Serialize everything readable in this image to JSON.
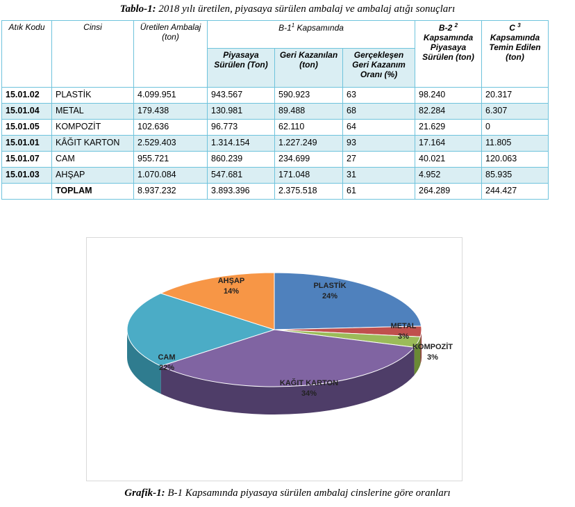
{
  "caption_top": {
    "bold": "Tablo-1:",
    "text": " 2018 yılı üretilen, piyasaya sürülen ambalaj ve ambalaj atığı sonuçları"
  },
  "caption_bottom": {
    "bold": "Grafik-1:",
    "text": " B-1 Kapsamında piyasaya sürülen ambalaj cinslerine göre oranları"
  },
  "table": {
    "headers": {
      "atik_kodu": "Atık Kodu",
      "cinsi": "Cinsi",
      "uretilen": "Üretilen Ambalaj (ton)",
      "b1_pre": "B-1",
      "b1_sup": "1",
      "b1_post": " Kapsamında",
      "piyasaya": "Piyasaya Sürülen (Ton)",
      "geri": "Geri Kazanılan (ton)",
      "oran": "Gerçekleşen Geri Kazanım Oranı (%)",
      "b2_pre": "B-2",
      "b2_sup": "2",
      "b2_post": "Kapsamında Piyasaya Sürülen (ton)",
      "c_pre": "C",
      "c_sup": "3",
      "c_post": "Kapsamında Temin Edilen (ton)"
    },
    "rows": [
      {
        "code": "15.01.02",
        "name": "PLASTİK",
        "uretilen": "4.099.951",
        "piyasaya": "943.567",
        "geri": "590.923",
        "oran": "63",
        "b2": "98.240",
        "c": "20.317"
      },
      {
        "code": "15.01.04",
        "name": "METAL",
        "uretilen": "179.438",
        "piyasaya": "130.981",
        "geri": "89.488",
        "oran": "68",
        "b2": "82.284",
        "c": "6.307"
      },
      {
        "code": "15.01.05",
        "name": "KOMPOZİT",
        "uretilen": "102.636",
        "piyasaya": "96.773",
        "geri": "62.110",
        "oran": "64",
        "b2": "21.629",
        "c": "0"
      },
      {
        "code": "15.01.01",
        "name": "KÂĞIT KARTON",
        "uretilen": "2.529.403",
        "piyasaya": "1.314.154",
        "geri": "1.227.249",
        "oran": "93",
        "b2": "17.164",
        "c": "11.805"
      },
      {
        "code": "15.01.07",
        "name": "CAM",
        "uretilen": "955.721",
        "piyasaya": "860.239",
        "geri": "234.699",
        "oran": "27",
        "b2": "40.021",
        "c": "120.063"
      },
      {
        "code": "15.01.03",
        "name": "AHŞAP",
        "uretilen": "1.070.084",
        "piyasaya": "547.681",
        "geri": "171.048",
        "oran": "31",
        "b2": "4.952",
        "c": "85.935"
      }
    ],
    "total": {
      "code": "",
      "name": "TOPLAM",
      "uretilen": "8.937.232",
      "piyasaya": "3.893.396",
      "geri": "2.375.518",
      "oran": "61",
      "b2": "264.289",
      "c": "244.427"
    }
  },
  "chart_data": {
    "type": "pie",
    "style": "3d",
    "categories": [
      "PLASTİK",
      "METAL",
      "KOMPOZİT",
      "KAĞIT KARTON",
      "CAM",
      "AHŞAP"
    ],
    "values": [
      24,
      3,
      3,
      34,
      22,
      14
    ],
    "value_labels": [
      "24%",
      "3%",
      "3%",
      "34%",
      "22%",
      "14%"
    ],
    "colors": [
      "#4f81bd",
      "#c0504d",
      "#9bbb59",
      "#8064a2",
      "#4bacc6",
      "#f79646"
    ],
    "dark_colors": [
      "#375a85",
      "#872f2c",
      "#6a8a35",
      "#4e3d68",
      "#2f7c8f",
      "#b86a25"
    ]
  }
}
